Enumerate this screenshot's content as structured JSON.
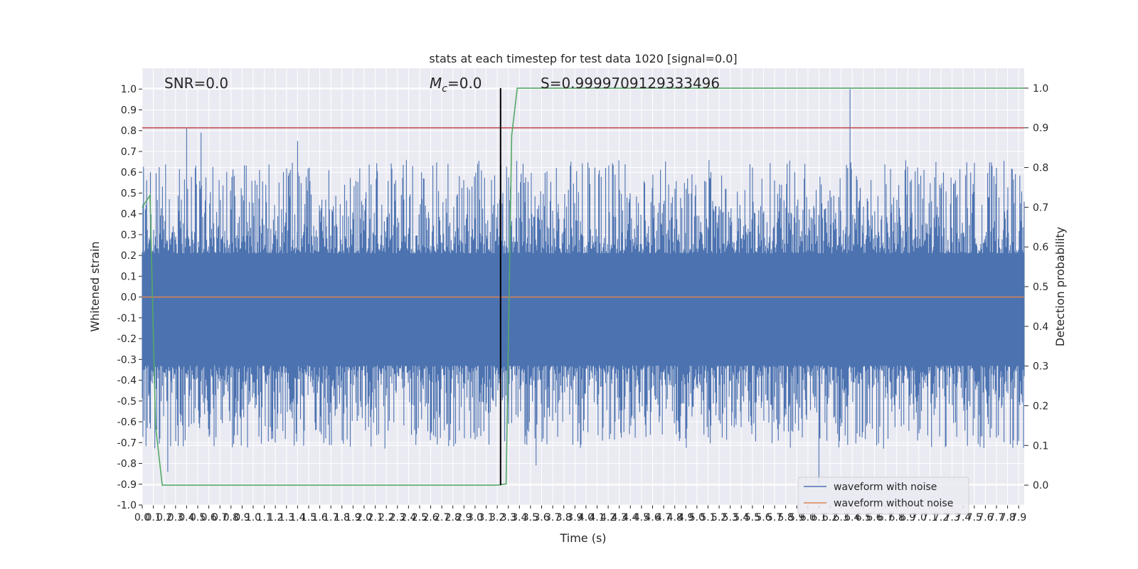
{
  "chart_data": {
    "type": "line",
    "title": "stats at each timestep for test data 1020 [signal=0.0]",
    "xlabel": "Time (s)",
    "ylabel": "Whitened strain",
    "y2label": "Detection probability",
    "xlim": [
      0.0,
      7.95
    ],
    "ylim": [
      -1.0,
      1.1
    ],
    "y2lim": [
      -0.05,
      1.05
    ],
    "x_ticks": [
      "0.0",
      "0.1",
      "0.2",
      "0.3",
      "0.4",
      "0.5",
      "0.6",
      "0.7",
      "0.8",
      "0.9",
      "1.0",
      "1.1",
      "1.2",
      "1.3",
      "1.4",
      "1.5",
      "1.6",
      "1.7",
      "1.8",
      "1.9",
      "2.0",
      "2.1",
      "2.2",
      "2.3",
      "2.4",
      "2.5",
      "2.6",
      "2.7",
      "2.8",
      "2.9",
      "3.0",
      "3.1",
      "3.2",
      "3.3",
      "3.4",
      "3.5",
      "3.6",
      "3.7",
      "3.8",
      "3.9",
      "4.0",
      "4.1",
      "4.2",
      "4.3",
      "4.4",
      "4.5",
      "4.6",
      "4.7",
      "4.8",
      "4.9",
      "5.0",
      "5.1",
      "5.2",
      "5.3",
      "5.4",
      "5.5",
      "5.6",
      "5.7",
      "5.8",
      "5.9",
      "6.0",
      "6.1",
      "6.2",
      "6.3",
      "6.4",
      "6.5",
      "6.6",
      "6.7",
      "6.8",
      "6.9",
      "7.0",
      "7.1",
      "7.2",
      "7.3",
      "7.4",
      "7.5",
      "7.6",
      "7.7",
      "7.8",
      "7.9"
    ],
    "y_ticks": [
      "-1.0",
      "-0.9",
      "-0.8",
      "-0.7",
      "-0.6",
      "-0.5",
      "-0.4",
      "-0.3",
      "-0.2",
      "-0.1",
      "0.0",
      "0.1",
      "0.2",
      "0.3",
      "0.4",
      "0.5",
      "0.6",
      "0.7",
      "0.8",
      "0.9",
      "1.0"
    ],
    "y2_ticks": [
      "0.0",
      "0.1",
      "0.2",
      "0.3",
      "0.4",
      "0.5",
      "0.6",
      "0.7",
      "0.8",
      "0.9",
      "1.0"
    ],
    "annotations": {
      "snr": "SNR=0.0",
      "mc_symbol": "M",
      "mc_sub": "c",
      "mc_value": "=0.0",
      "score": "S=0.9999709129333496"
    },
    "grid": true,
    "legend_placement": "lower-right",
    "series": [
      {
        "name": "waveform with noise",
        "color": "#4c72b0",
        "band": [
          -0.33,
          0.21
        ],
        "peaks": [
          [
            0.4,
            0.81
          ],
          [
            0.53,
            0.79
          ],
          [
            1.4,
            0.75
          ],
          [
            6.38,
            1.0
          ],
          [
            6.1,
            -0.9
          ],
          [
            0.23,
            -0.84
          ],
          [
            3.55,
            -0.81
          ]
        ]
      },
      {
        "name": "waveform without noise",
        "color": "#dd8452",
        "values_const": 0.0
      },
      {
        "color": "#55a868",
        "x": [
          0.0,
          0.07,
          0.12,
          0.18,
          3.2,
          3.28,
          3.33,
          3.38,
          7.95
        ],
        "y": [
          0.7,
          0.73,
          0.15,
          0.0,
          0.0,
          0.003,
          0.88,
          1.0,
          1.0
        ]
      }
    ],
    "threshold": {
      "color": "#c44e52",
      "y2": 0.9
    },
    "marker_line": {
      "color": "#000000",
      "x": 3.23,
      "y2_range": [
        0.0,
        1.0
      ]
    }
  }
}
